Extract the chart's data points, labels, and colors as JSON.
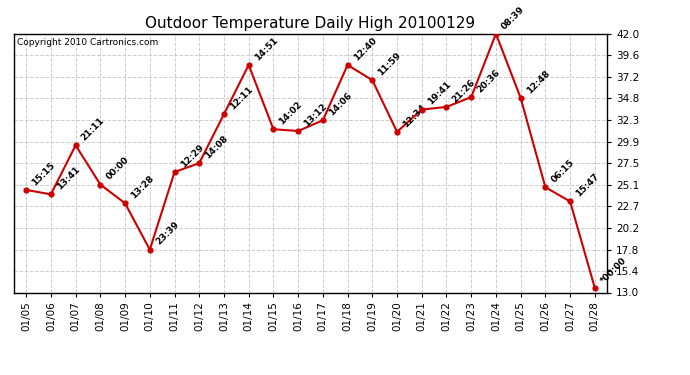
{
  "title": "Outdoor Temperature Daily High 20100129",
  "copyright": "Copyright 2010 Cartronics.com",
  "dates": [
    "01/05",
    "01/06",
    "01/07",
    "01/08",
    "01/09",
    "01/10",
    "01/11",
    "01/12",
    "01/13",
    "01/14",
    "01/15",
    "01/16",
    "01/17",
    "01/18",
    "01/19",
    "01/20",
    "01/21",
    "01/22",
    "01/23",
    "01/24",
    "01/25",
    "01/26",
    "01/27",
    "01/28"
  ],
  "values": [
    24.5,
    24.0,
    29.5,
    25.1,
    23.0,
    17.8,
    26.5,
    27.5,
    33.0,
    38.5,
    31.3,
    31.1,
    32.3,
    38.5,
    36.8,
    31.0,
    33.5,
    33.8,
    34.9,
    42.0,
    34.8,
    24.8,
    23.2,
    13.5
  ],
  "labels": [
    "15:15",
    "13:41",
    "21:11",
    "00:00",
    "13:28",
    "23:39",
    "12:29",
    "14:08",
    "12:11",
    "14:51",
    "14:02",
    "13:12",
    "14:06",
    "12:40",
    "11:59",
    "12:34",
    "19:41",
    "21:26",
    "20:36",
    "08:39",
    "12:48",
    "06:15",
    "15:47",
    "*00:00"
  ],
  "yticks": [
    13.0,
    15.4,
    17.8,
    20.2,
    22.7,
    25.1,
    27.5,
    29.9,
    32.3,
    34.8,
    37.2,
    39.6,
    42.0
  ],
  "line_color": "#cc0000",
  "marker_color": "#cc0000",
  "bg_color": "#ffffff",
  "plot_bg_color": "#ffffff",
  "grid_color": "#cccccc",
  "title_fontsize": 11,
  "label_fontsize": 6.5,
  "tick_fontsize": 7.5
}
